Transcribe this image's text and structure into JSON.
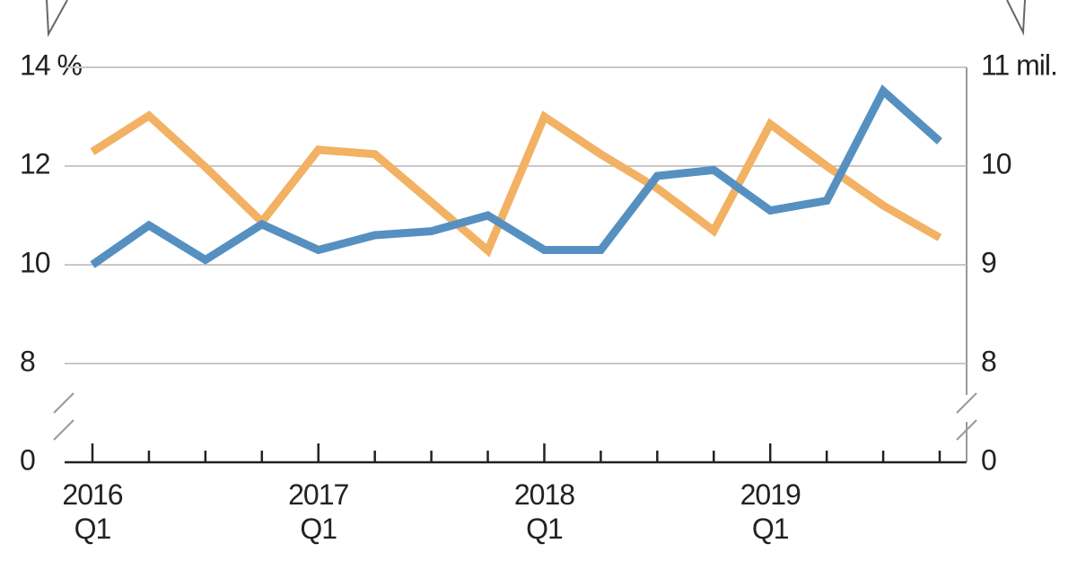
{
  "chart_data": {
    "type": "line",
    "axis_break": true,
    "grid": true,
    "categories": [
      "2016\nQ1",
      null,
      null,
      null,
      "2017\nQ1",
      null,
      null,
      null,
      "2018\nQ1",
      null,
      null,
      null,
      "2019\nQ1",
      null,
      null,
      null
    ],
    "ylim": [
      6,
      14
    ],
    "yticks": [
      {
        "value": 14,
        "label": "14 %"
      },
      12,
      10,
      8,
      0
    ],
    "y2lim": [
      7,
      11
    ],
    "y2ticks": [
      {
        "value": 11,
        "label": "11 mil."
      },
      10,
      9,
      8,
      0
    ],
    "series": [
      {
        "color": "#f2b163",
        "values": [
          12.29,
          13.02,
          11.98,
          10.87,
          12.33,
          12.24,
          11.27,
          10.29,
          13.0,
          12.24,
          11.55,
          10.69,
          12.85,
          12.0,
          11.2,
          10.55
        ]
      },
      {
        "color": "#5590c0",
        "axis": "y2",
        "values": [
          9.0,
          9.4,
          9.05,
          9.41,
          9.15,
          9.3,
          9.34,
          9.5,
          9.15,
          9.15,
          9.9,
          9.96,
          9.55,
          9.65,
          10.76,
          10.25
        ]
      }
    ]
  }
}
